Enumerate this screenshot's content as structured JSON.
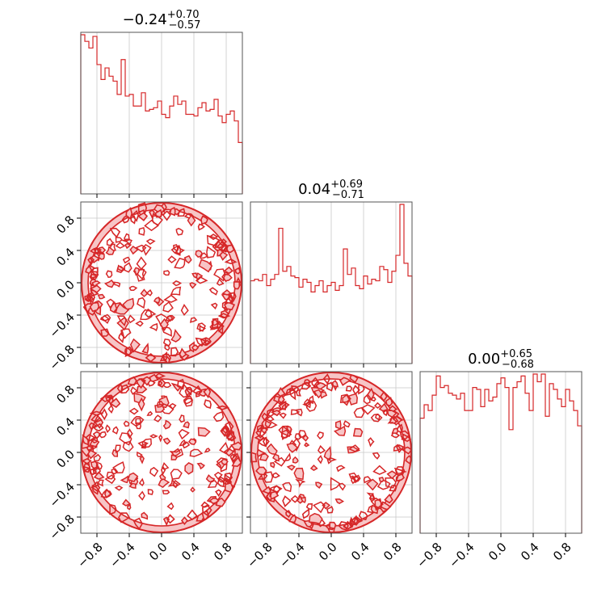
{
  "colors": {
    "line": "#d62728",
    "fill": "#f7c5c6",
    "grid": "#c8c8c8",
    "frame": "#555555",
    "text": "#000000"
  },
  "chart_data": [
    {
      "type": "histogram",
      "panel": "1d-x0",
      "title": {
        "median": "−0.24",
        "plus": "+0.70",
        "minus": "−0.57"
      },
      "xlim": [
        -1,
        1
      ],
      "bins": 40,
      "counts": [
        96,
        92,
        88,
        95,
        78,
        69,
        76,
        71,
        68,
        60,
        81,
        59,
        60,
        53,
        53,
        61,
        50,
        51,
        52,
        56,
        48,
        46,
        53,
        59,
        54,
        56,
        48,
        48,
        47,
        52,
        55,
        50,
        51,
        57,
        47,
        43,
        48,
        50,
        44,
        31
      ]
    },
    {
      "type": "histogram",
      "panel": "1d-x1",
      "title": {
        "median": "0.04",
        "plus": "+0.69",
        "minus": "−0.71"
      },
      "xlim": [
        -1,
        1
      ],
      "bins": 40,
      "counts": [
        52,
        53,
        52,
        56,
        49,
        53,
        56,
        85,
        58,
        61,
        55,
        54,
        48,
        53,
        51,
        45,
        49,
        52,
        45,
        49,
        51,
        46,
        49,
        72,
        56,
        60,
        49,
        47,
        55,
        50,
        53,
        52,
        61,
        59,
        51,
        58,
        68,
        100,
        63,
        55
      ]
    },
    {
      "type": "histogram",
      "panel": "1d-x2",
      "title": {
        "median": "0.00",
        "plus": "+0.65",
        "minus": "−0.68"
      },
      "xlim": [
        -1,
        1
      ],
      "bins": 40,
      "counts": [
        60,
        67,
        64,
        72,
        82,
        76,
        77,
        73,
        72,
        70,
        73,
        64,
        64,
        76,
        75,
        66,
        75,
        69,
        71,
        78,
        81,
        76,
        54,
        76,
        79,
        82,
        73,
        64,
        83,
        79,
        83,
        61,
        78,
        75,
        70,
        66,
        75,
        69,
        64,
        56
      ]
    },
    {
      "type": "contour",
      "panel": "2d-x0-x1",
      "support": "unit disk",
      "xlim": [
        -1,
        1
      ],
      "ylim": [
        -1,
        1
      ]
    },
    {
      "type": "contour",
      "panel": "2d-x0-x2",
      "support": "unit disk",
      "xlim": [
        -1,
        1
      ],
      "ylim": [
        -1,
        1
      ]
    },
    {
      "type": "contour",
      "panel": "2d-x1-x2",
      "support": "unit disk",
      "xlim": [
        -1,
        1
      ],
      "ylim": [
        -1,
        1
      ]
    }
  ],
  "axes": {
    "ticks": [
      -0.8,
      -0.4,
      0.0,
      0.4,
      0.8
    ],
    "tick_labels": [
      "−0.8",
      "−0.4",
      "0.0",
      "0.4",
      "0.8"
    ]
  }
}
